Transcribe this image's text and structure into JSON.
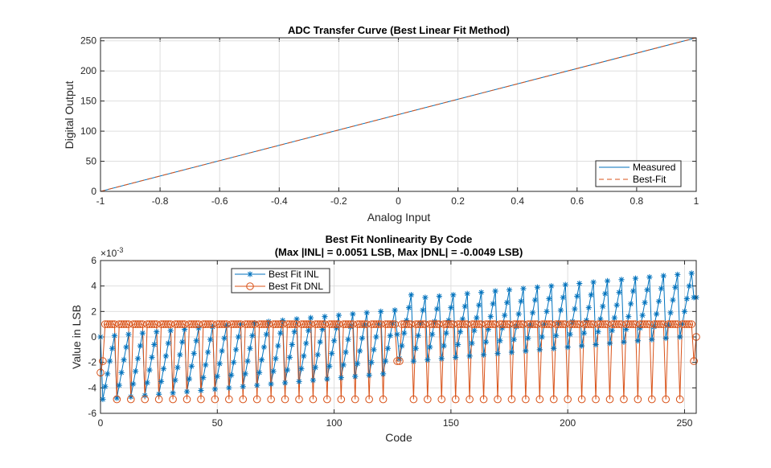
{
  "chart_data": [
    {
      "type": "line",
      "title": "ADC Transfer Curve (Best Linear Fit Method)",
      "xlabel": "Analog Input",
      "ylabel": "Digital Output",
      "xlim": [
        -1,
        1
      ],
      "ylim": [
        0,
        255
      ],
      "xticks": [
        -1,
        -0.8,
        -0.6,
        -0.4,
        -0.2,
        0,
        0.2,
        0.4,
        0.6,
        0.8,
        1
      ],
      "xtick_labels": [
        "-1",
        "-0.8",
        "-0.6",
        "-0.4",
        "-0.2",
        "0",
        "0.2",
        "0.4",
        "0.6",
        "0.8",
        "1"
      ],
      "yticks": [
        0,
        50,
        100,
        150,
        200,
        250
      ],
      "ytick_labels": [
        "0",
        "50",
        "100",
        "150",
        "200",
        "250"
      ],
      "grid": true,
      "legend_position": "bottom-right",
      "series": [
        {
          "name": "Measured",
          "color": "#0072BD",
          "style": "solid",
          "x": [
            -1,
            1
          ],
          "y": [
            0,
            255
          ]
        },
        {
          "name": "Best-Fit",
          "color": "#D95319",
          "style": "dashed",
          "x": [
            -1,
            1
          ],
          "y": [
            0,
            255
          ]
        }
      ]
    },
    {
      "type": "line",
      "title": "Best Fit Nonlinearity By Code",
      "subtitle": "(Max |INL| = 0.0051 LSB, Max |DNL| = -0.0049 LSB)",
      "xlabel": "Code",
      "ylabel": "Value in LSB",
      "y_multiplier_label": "×10",
      "y_multiplier_exp": "-3",
      "y_scale": 0.001,
      "xlim": [
        0,
        255
      ],
      "ylim": [
        -6,
        6
      ],
      "xticks": [
        0,
        50,
        100,
        150,
        200,
        250
      ],
      "xtick_labels": [
        "0",
        "50",
        "100",
        "150",
        "200",
        "250"
      ],
      "yticks": [
        -6,
        -4,
        -2,
        0,
        2,
        4,
        6
      ],
      "ytick_labels": [
        "-6",
        "-4",
        "-2",
        "0",
        "2",
        "4",
        "6"
      ],
      "grid": true,
      "legend_position": "top-left",
      "series": [
        {
          "name": "Best Fit INL",
          "color": "#0072BD",
          "marker": "star",
          "values": [
            0.0,
            -4.9,
            -3.9,
            -2.9,
            -1.9,
            -0.9,
            0.1,
            -4.8,
            -3.8,
            -2.8,
            -1.8,
            -0.8,
            0.2,
            -4.7,
            -3.7,
            -2.7,
            -1.7,
            -0.7,
            0.3,
            -4.6,
            -3.6,
            -2.6,
            -1.6,
            -0.6,
            0.4,
            -4.5,
            -3.5,
            -2.5,
            -1.5,
            -0.5,
            0.5,
            -4.4,
            -3.4,
            -2.4,
            -1.4,
            -0.4,
            0.6,
            -4.3,
            -3.3,
            -2.3,
            -1.3,
            -0.3,
            0.7,
            -4.2,
            -3.2,
            -2.2,
            -1.2,
            -0.2,
            0.8,
            -4.1,
            -3.1,
            -2.1,
            -1.1,
            -0.1,
            0.9,
            -4.0,
            -3.0,
            -2.0,
            -1.0,
            0.0,
            1.0,
            -3.9,
            -2.9,
            -1.9,
            -0.9,
            0.1,
            1.1,
            -3.8,
            -2.8,
            -1.8,
            -0.8,
            0.2,
            1.2,
            -3.7,
            -2.7,
            -1.7,
            -0.7,
            0.3,
            1.3,
            -3.6,
            -2.6,
            -1.6,
            -0.6,
            0.4,
            1.4,
            -3.5,
            -2.5,
            -1.5,
            -0.5,
            0.5,
            1.5,
            -3.4,
            -2.4,
            -1.4,
            -0.4,
            0.6,
            1.6,
            -3.3,
            -2.3,
            -1.3,
            -0.3,
            0.7,
            1.7,
            -3.2,
            -2.2,
            -1.2,
            -0.2,
            0.8,
            1.8,
            -3.1,
            -2.1,
            -1.1,
            -0.1,
            0.9,
            1.9,
            -3.0,
            -2.0,
            -1.0,
            0.0,
            1.0,
            2.0,
            -2.9,
            -1.9,
            -0.9,
            0.1,
            1.1,
            2.1,
            0.2,
            -1.7,
            -0.7,
            0.3,
            1.3,
            2.3,
            3.3,
            -1.9,
            -0.9,
            0.1,
            1.1,
            2.1,
            3.1,
            -1.8,
            -0.8,
            0.2,
            1.2,
            2.2,
            3.2,
            -1.7,
            -0.7,
            0.3,
            1.3,
            2.3,
            3.3,
            -1.6,
            -0.6,
            0.4,
            1.4,
            2.4,
            3.4,
            -1.5,
            -0.5,
            0.5,
            1.5,
            2.5,
            3.5,
            -1.4,
            -0.4,
            0.6,
            1.6,
            2.6,
            3.6,
            -1.3,
            -0.3,
            0.7,
            1.7,
            2.7,
            3.7,
            -1.2,
            -0.2,
            0.8,
            1.8,
            2.8,
            3.8,
            -1.1,
            -0.1,
            0.9,
            1.9,
            2.9,
            3.9,
            -1.0,
            0.0,
            1.0,
            2.0,
            3.0,
            4.0,
            -0.9,
            0.1,
            1.1,
            2.1,
            3.1,
            4.1,
            -0.8,
            0.2,
            1.2,
            2.2,
            3.2,
            4.2,
            -0.7,
            0.3,
            1.3,
            2.3,
            3.3,
            4.3,
            -0.6,
            0.4,
            1.4,
            2.4,
            3.4,
            4.4,
            -0.5,
            0.5,
            1.5,
            2.5,
            3.5,
            4.5,
            -0.4,
            0.6,
            1.6,
            2.6,
            3.6,
            4.6,
            -0.3,
            0.7,
            1.7,
            2.7,
            3.7,
            4.7,
            -0.2,
            0.8,
            1.8,
            2.8,
            3.8,
            4.8,
            -0.1,
            0.9,
            1.9,
            2.9,
            3.9,
            4.9,
            0.0,
            1.0,
            2.0,
            3.0,
            4.0,
            5.0,
            3.1,
            3.1
          ]
        },
        {
          "name": "Best Fit DNL",
          "color": "#D95319",
          "marker": "circle",
          "values": [
            -2.8,
            -1.9,
            1,
            1,
            1,
            1,
            1,
            -4.9,
            1,
            1,
            1,
            1,
            1,
            -4.9,
            1,
            1,
            1,
            1,
            1,
            -4.9,
            1,
            1,
            1,
            1,
            1,
            -4.9,
            1,
            1,
            1,
            1,
            1,
            -4.9,
            1,
            1,
            1,
            1,
            1,
            -4.9,
            1,
            1,
            1,
            1,
            1,
            -4.9,
            1,
            1,
            1,
            1,
            1,
            -4.9,
            1,
            1,
            1,
            1,
            1,
            -4.9,
            1,
            1,
            1,
            1,
            1,
            -4.9,
            1,
            1,
            1,
            1,
            1,
            -4.9,
            1,
            1,
            1,
            1,
            1,
            -4.9,
            1,
            1,
            1,
            1,
            1,
            -4.9,
            1,
            1,
            1,
            1,
            1,
            -4.9,
            1,
            1,
            1,
            1,
            1,
            -4.9,
            1,
            1,
            1,
            1,
            1,
            -4.9,
            1,
            1,
            1,
            1,
            1,
            -4.9,
            1,
            1,
            1,
            1,
            1,
            -4.9,
            1,
            1,
            1,
            1,
            1,
            -4.9,
            1,
            1,
            1,
            1,
            1,
            -4.9,
            1,
            1,
            1,
            1,
            1,
            -1.9,
            -1.9,
            1,
            1,
            1,
            1,
            1,
            -4.9,
            1,
            1,
            1,
            1,
            1,
            -4.9,
            1,
            1,
            1,
            1,
            1,
            -4.9,
            1,
            1,
            1,
            1,
            1,
            -4.9,
            1,
            1,
            1,
            1,
            1,
            -4.9,
            1,
            1,
            1,
            1,
            1,
            -4.9,
            1,
            1,
            1,
            1,
            1,
            -4.9,
            1,
            1,
            1,
            1,
            1,
            -4.9,
            1,
            1,
            1,
            1,
            1,
            -4.9,
            1,
            1,
            1,
            1,
            1,
            -4.9,
            1,
            1,
            1,
            1,
            1,
            -4.9,
            1,
            1,
            1,
            1,
            1,
            -4.9,
            1,
            1,
            1,
            1,
            1,
            -4.9,
            1,
            1,
            1,
            1,
            1,
            -4.9,
            1,
            1,
            1,
            1,
            1,
            -4.9,
            1,
            1,
            1,
            1,
            1,
            -4.9,
            1,
            1,
            1,
            1,
            1,
            -4.9,
            1,
            1,
            1,
            1,
            1,
            -4.9,
            1,
            1,
            1,
            1,
            1,
            -4.9,
            1,
            1,
            1,
            1,
            1,
            -4.9,
            1,
            1,
            1,
            1,
            1,
            -1.9,
            0
          ]
        }
      ]
    }
  ]
}
